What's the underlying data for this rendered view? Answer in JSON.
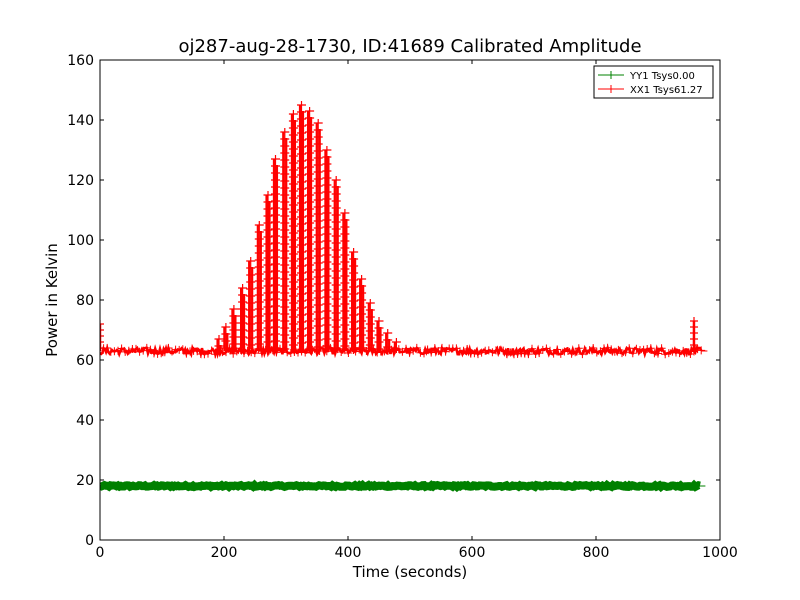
{
  "chart_data": {
    "type": "line",
    "title": "oj287-aug-28-1730, ID:41689 Calibrated Amplitude",
    "xlabel": "Time (seconds)",
    "ylabel": "Power in Kelvin",
    "xlim": [
      0,
      1000
    ],
    "ylim": [
      0,
      160
    ],
    "x_ticks": [
      "0",
      "200",
      "400",
      "600",
      "800",
      "1000"
    ],
    "y_ticks": [
      "0",
      "20",
      "40",
      "60",
      "80",
      "100",
      "120",
      "140",
      "160"
    ],
    "grid": false,
    "legend_position": "top-right",
    "series": [
      {
        "name": "YY1 Tsys0.00",
        "color": "#008000",
        "marker": "+",
        "x_range": [
          0,
          970
        ],
        "baseline": 18
      },
      {
        "name": "XX1 Tsys61.27",
        "color": "#ff0000",
        "marker": "+",
        "x_range": [
          0,
          970
        ],
        "baseline": 63,
        "scan_peaks": [
          {
            "x": 192,
            "y": 67
          },
          {
            "x": 203,
            "y": 71
          },
          {
            "x": 216,
            "y": 77
          },
          {
            "x": 230,
            "y": 84
          },
          {
            "x": 243,
            "y": 93
          },
          {
            "x": 257,
            "y": 105
          },
          {
            "x": 271,
            "y": 115
          },
          {
            "x": 283,
            "y": 127
          },
          {
            "x": 298,
            "y": 136
          },
          {
            "x": 312,
            "y": 142
          },
          {
            "x": 325,
            "y": 145
          },
          {
            "x": 338,
            "y": 143
          },
          {
            "x": 352,
            "y": 139
          },
          {
            "x": 366,
            "y": 130
          },
          {
            "x": 381,
            "y": 120
          },
          {
            "x": 395,
            "y": 109
          },
          {
            "x": 409,
            "y": 96
          },
          {
            "x": 422,
            "y": 87
          },
          {
            "x": 436,
            "y": 79
          },
          {
            "x": 450,
            "y": 73
          },
          {
            "x": 464,
            "y": 69
          },
          {
            "x": 478,
            "y": 66
          }
        ],
        "end_spikes": [
          {
            "x": 0,
            "y": 72
          },
          {
            "x": 958,
            "y": 73
          }
        ]
      }
    ]
  }
}
